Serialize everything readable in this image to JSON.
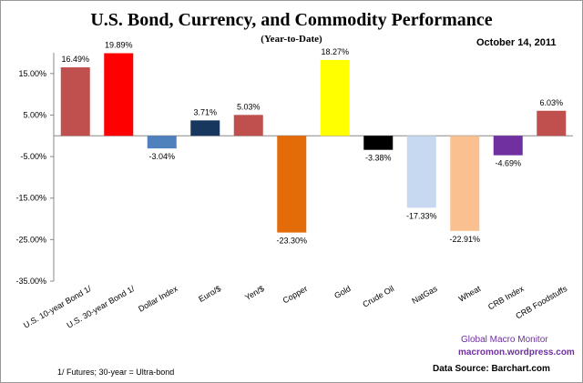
{
  "chart_data": {
    "type": "bar",
    "title": "U.S. Bond, Currency, and Commodity Performance",
    "subtitle": "(Year-to-Date)",
    "date": "October 14, 2011",
    "categories": [
      "U.S. 10-year Bond 1/",
      "U.S. 30-year Bond 1/",
      "Dollar Index",
      "Euro/$",
      "Yen/$",
      "Copper",
      "Gold",
      "Crude Oil",
      "NatGas",
      "Wheat",
      "CRB Index",
      "CRB Foodstuffs"
    ],
    "values": [
      16.49,
      19.89,
      -3.04,
      3.71,
      5.03,
      -23.3,
      18.27,
      -3.38,
      -17.33,
      -22.91,
      -4.69,
      6.03
    ],
    "data_labels": [
      "16.49%",
      "19.89%",
      "-3.04%",
      "3.71%",
      "5.03%",
      "-23.30%",
      "18.27%",
      "-3.38%",
      "-17.33%",
      "-22.91%",
      "-4.69%",
      "6.03%"
    ],
    "colors": [
      "#c0504d",
      "#ff0000",
      "#4f81bd",
      "#17375e",
      "#c0504d",
      "#e36c09",
      "#ffff00",
      "#000000",
      "#c6d9f1",
      "#fac090",
      "#7030a0",
      "#c0504d"
    ],
    "yticks": [
      15,
      5,
      -5,
      -15,
      -25,
      -35
    ],
    "ytick_labels": [
      "15.00%",
      "5.00%",
      "-5.00%",
      "-15.00%",
      "-25.00%",
      "-35.00%"
    ],
    "ylim": [
      -35,
      20
    ],
    "xlabel": "",
    "ylabel": "",
    "grid": false,
    "legend": "none"
  },
  "footer": {
    "note": "1/  Futures; 30-year = Ultra-bond",
    "brand": "Global Macro Monitor",
    "site": "macromon.wordpress.com",
    "source": "Data Source:  Barchart.com"
  }
}
